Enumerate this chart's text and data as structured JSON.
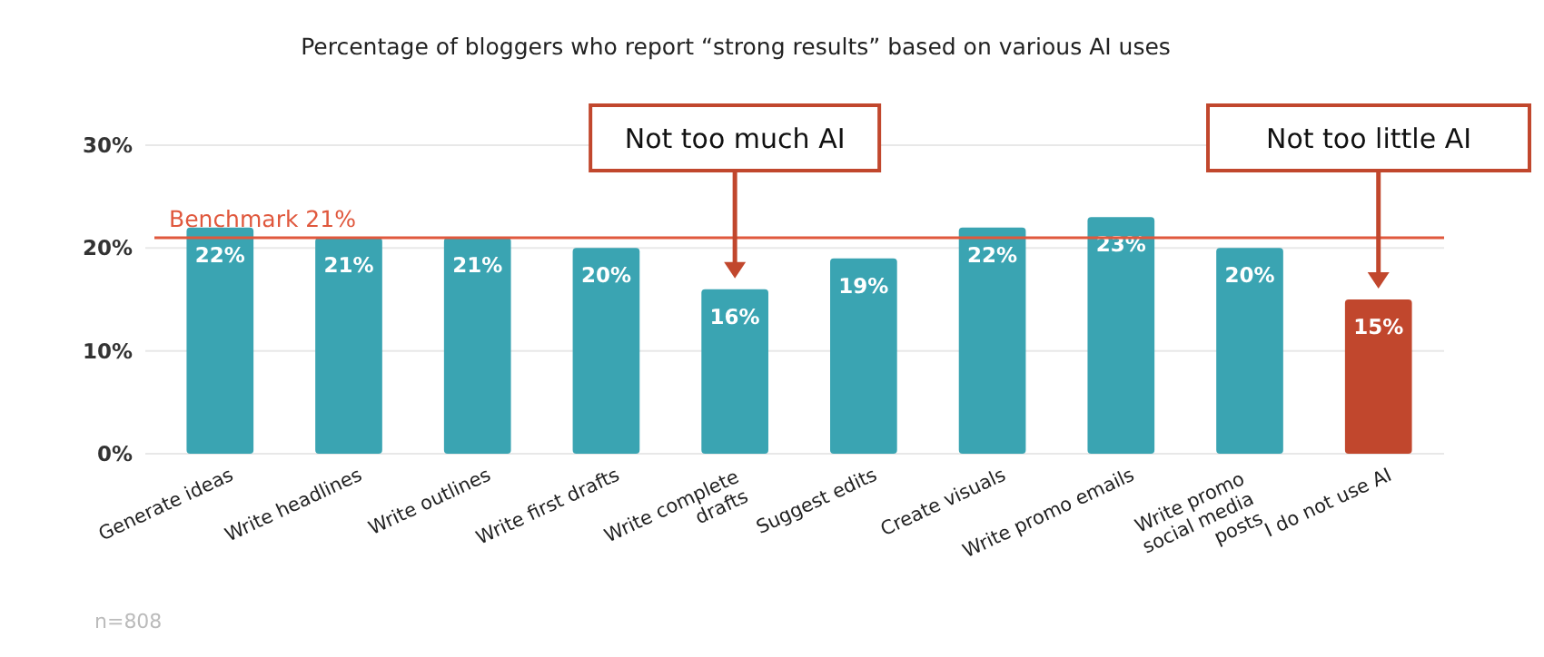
{
  "chart_data": {
    "type": "bar",
    "title": "Percentage of bloggers who report “strong results” based on various AI uses",
    "categories": [
      "Generate ideas",
      "Write headlines",
      "Write outlines",
      "Write first drafts",
      "Write complete drafts",
      "Suggest edits",
      "Create visuals",
      "Write promo emails",
      "Write promo social media posts",
      "I do not use AI"
    ],
    "values": [
      22,
      21,
      21,
      20,
      16,
      19,
      22,
      23,
      20,
      15
    ],
    "colors": [
      "#3aa4b2",
      "#3aa4b2",
      "#3aa4b2",
      "#3aa4b2",
      "#3aa4b2",
      "#3aa4b2",
      "#3aa4b2",
      "#3aa4b2",
      "#3aa4b2",
      "#c1472d"
    ],
    "value_labels": [
      "22%",
      "21%",
      "21%",
      "20%",
      "16%",
      "19%",
      "22%",
      "23%",
      "20%",
      "15%"
    ],
    "ylim": [
      0,
      30
    ],
    "yticks": [
      {
        "value": 0,
        "label": "0%"
      },
      {
        "value": 10,
        "label": "10%"
      },
      {
        "value": 20,
        "label": "20%"
      },
      {
        "value": 30,
        "label": "30%"
      }
    ],
    "grid": "y",
    "ref_lines": [
      {
        "axis": "y",
        "value": 21,
        "label": "Benchmark 21%",
        "color": "#e0583d"
      }
    ],
    "annotations": [
      "Not too much AI",
      "Not too little AI",
      "n=808"
    ]
  }
}
